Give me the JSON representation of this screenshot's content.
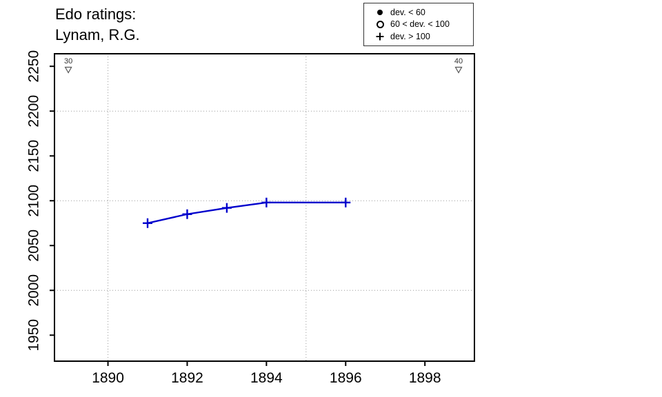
{
  "header": {
    "title_line1": "Edo ratings:",
    "title_line2": "Lynam, R.G."
  },
  "legend": {
    "items": [
      {
        "symbol": "filled-circle",
        "label": "dev. < 60"
      },
      {
        "symbol": "open-circle",
        "label": "60 < dev. < 100"
      },
      {
        "symbol": "plus",
        "label": "dev. > 100"
      }
    ]
  },
  "chart_data": {
    "type": "line",
    "title": "Edo ratings: Lynam, R.G.",
    "x": [
      1891,
      1892,
      1893,
      1894,
      1896
    ],
    "series": [
      {
        "name": "Edo rating",
        "marker": "plus",
        "dev_class": "dev. > 100",
        "color": "#0000CC",
        "values": [
          2075,
          2085,
          2092,
          2098,
          2098
        ]
      }
    ],
    "xlabel": "",
    "ylabel": "",
    "x_ticks": [
      1890,
      1892,
      1894,
      1896,
      1898
    ],
    "y_ticks": [
      1950,
      2000,
      2050,
      2100,
      2150,
      2200,
      2250
    ],
    "xlim": [
      1888.65,
      1899.25
    ],
    "ylim": [
      1921,
      2264
    ],
    "grid": {
      "style": "dotted",
      "color": "#999999",
      "h_lines": [
        2000,
        2100,
        2200
      ],
      "v_lines": [
        1890,
        1895
      ]
    },
    "annotations": [
      {
        "text": "30",
        "x": 1889.0,
        "marker": "open-triangle-down"
      },
      {
        "text": "40",
        "x": 1898.85,
        "marker": "open-triangle-down"
      }
    ],
    "axis_color": "#000000",
    "tick_label_color": "#000000"
  }
}
